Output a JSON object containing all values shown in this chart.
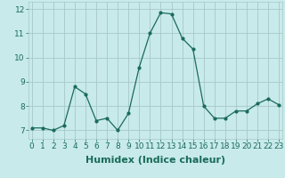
{
  "x": [
    0,
    1,
    2,
    3,
    4,
    5,
    6,
    7,
    8,
    9,
    10,
    11,
    12,
    13,
    14,
    15,
    16,
    17,
    18,
    19,
    20,
    21,
    22,
    23
  ],
  "y": [
    7.1,
    7.1,
    7.0,
    7.2,
    8.8,
    8.5,
    7.4,
    7.5,
    7.0,
    7.7,
    9.6,
    11.0,
    11.85,
    11.8,
    10.8,
    10.35,
    8.0,
    7.5,
    7.5,
    7.8,
    7.8,
    8.1,
    8.3,
    8.05
  ],
  "ylim": [
    6.65,
    12.3
  ],
  "yticks": [
    7,
    8,
    9,
    10,
    11,
    12
  ],
  "xticks": [
    0,
    1,
    2,
    3,
    4,
    5,
    6,
    7,
    8,
    9,
    10,
    11,
    12,
    13,
    14,
    15,
    16,
    17,
    18,
    19,
    20,
    21,
    22,
    23
  ],
  "xlabel": "Humidex (Indice chaleur)",
  "line_color": "#1a6b5a",
  "marker": "o",
  "marker_size": 2,
  "bg_color": "#c8eaea",
  "grid_color": "#a8c8c8",
  "xlabel_fontsize": 8,
  "tick_fontsize": 6.5
}
